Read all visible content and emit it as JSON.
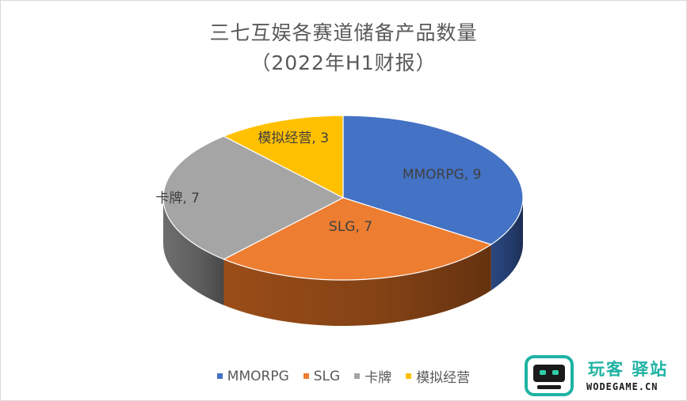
{
  "chart_data": {
    "type": "pie",
    "title": "三七互娱各赛道储备产品数量",
    "subtitle": "（2022年H1财报）",
    "categories": [
      "MMORPG",
      "SLG",
      "卡牌",
      "模拟经营"
    ],
    "values": [
      9,
      7,
      7,
      3
    ],
    "data_labels": [
      "MMORPG, 9",
      "SLG, 7",
      "卡牌, 7",
      "模拟经营, 3"
    ],
    "colors": [
      "#4472C4",
      "#ED7D31",
      "#A5A5A5",
      "#FFC000"
    ],
    "side_colors": [
      "#2a4780",
      "#9a4d18",
      "#6e6e6e",
      "#a87f00"
    ],
    "style": "3d",
    "legend_position": "bottom"
  },
  "watermark": {
    "name": "玩客 驿站",
    "domain": "WODEGAME.CN"
  }
}
